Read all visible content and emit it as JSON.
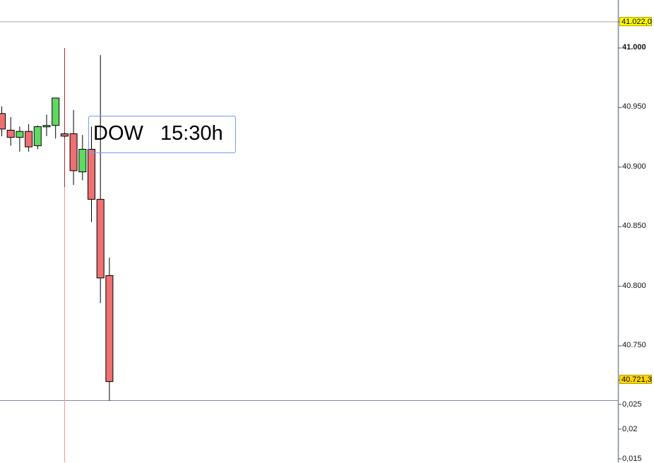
{
  "chart_data": {
    "type": "candlestick",
    "title": "DOW",
    "time_label": "15:30h",
    "ylim": [
      40690,
      41040
    ],
    "yticks": [
      "41.000",
      "40.950",
      "40.900",
      "40.850",
      "40.800",
      "40.750"
    ],
    "ytick_values": [
      41000,
      40950,
      40900,
      40850,
      40800,
      40750
    ],
    "price_tags": [
      {
        "label": "41.022,0",
        "value": 41022,
        "color": "#ffff00"
      },
      {
        "label": "40.721,3",
        "value": 40721.3,
        "color": "#ffd700"
      }
    ],
    "lower_panel_ticks": [
      "0,025",
      "0,02",
      "0,015"
    ],
    "colors": {
      "up": "#5fd95f",
      "down": "#ee7070",
      "marker": "#ff9090",
      "grid_line": "#a8a8a8",
      "label_border": "#6fa0f0"
    },
    "candles": [
      {
        "o": 40945,
        "h": 40951,
        "l": 40926,
        "c": 40932
      },
      {
        "o": 40931,
        "h": 40942,
        "l": 40918,
        "c": 40925
      },
      {
        "o": 40925,
        "h": 40934,
        "l": 40913,
        "c": 40930
      },
      {
        "o": 40930,
        "h": 40936,
        "l": 40913,
        "c": 40917
      },
      {
        "o": 40918,
        "h": 40935,
        "l": 40915,
        "c": 40934
      },
      {
        "o": 40934,
        "h": 40944,
        "l": 40926,
        "c": 40935
      },
      {
        "o": 40935,
        "h": 40958,
        "l": 40924,
        "c": 40958
      },
      {
        "o": 40928,
        "h": 40929,
        "l": 40925,
        "c": 40926
      },
      {
        "o": 40928,
        "h": 40948,
        "l": 40885,
        "c": 40897
      },
      {
        "o": 40896,
        "h": 40927,
        "l": 40889,
        "c": 40915
      },
      {
        "o": 40915,
        "h": 40934,
        "l": 40854,
        "c": 40873
      },
      {
        "o": 40873,
        "h": 40994,
        "l": 40786,
        "c": 40807
      },
      {
        "o": 40809,
        "h": 40824,
        "l": 40704,
        "c": 40720
      }
    ]
  }
}
